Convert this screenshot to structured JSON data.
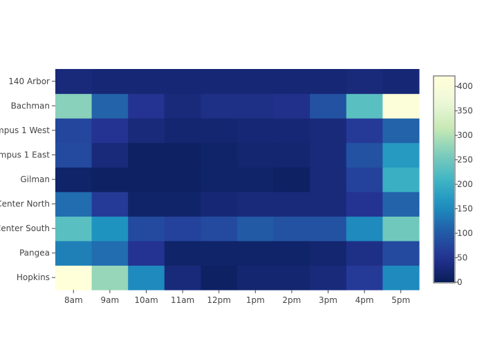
{
  "chart_data": {
    "type": "heatmap",
    "x_categories": [
      "8am",
      "9am",
      "10am",
      "11am",
      "12pm",
      "1pm",
      "2pm",
      "3pm",
      "4pm",
      "5pm"
    ],
    "y_categories": [
      "Hopkins",
      "Pangea",
      "Center South",
      "Center North",
      "Gilman",
      "ampus 1 East",
      "ampus 1 West",
      "Bachman",
      "140 Arbor"
    ],
    "z": [
      [
        420,
        280,
        150,
        30,
        10,
        20,
        20,
        30,
        60,
        150
      ],
      [
        140,
        120,
        50,
        15,
        15,
        15,
        15,
        20,
        40,
        80
      ],
      [
        230,
        160,
        80,
        70,
        80,
        100,
        90,
        90,
        150,
        250
      ],
      [
        120,
        60,
        15,
        15,
        25,
        30,
        30,
        30,
        50,
        110
      ],
      [
        15,
        10,
        10,
        10,
        15,
        15,
        10,
        30,
        70,
        200
      ],
      [
        80,
        30,
        10,
        10,
        15,
        20,
        20,
        30,
        90,
        170
      ],
      [
        75,
        50,
        30,
        20,
        20,
        25,
        25,
        30,
        60,
        110
      ],
      [
        270,
        110,
        50,
        30,
        40,
        40,
        45,
        90,
        230,
        410
      ],
      [
        30,
        25,
        25,
        25,
        25,
        25,
        25,
        25,
        30,
        25
      ]
    ],
    "zmin": 0,
    "zmax": 420,
    "colorscale": "YlGnBu",
    "colorbar_ticks": [
      0,
      50,
      100,
      150,
      200,
      250,
      300,
      350,
      400
    ]
  }
}
